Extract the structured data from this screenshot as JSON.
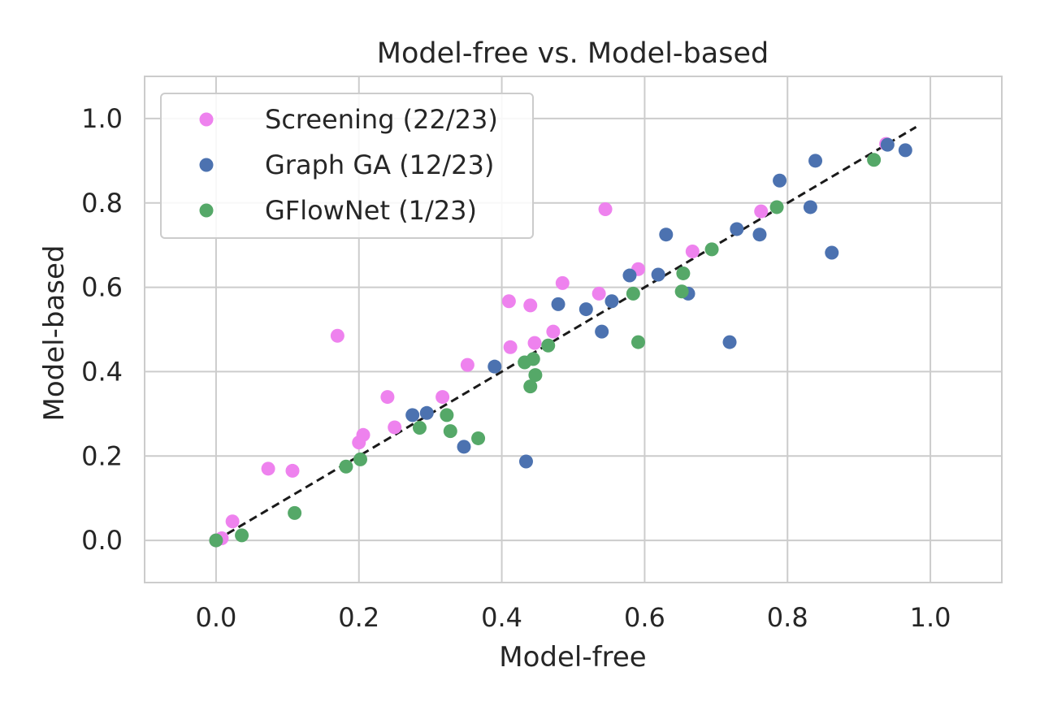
{
  "chart_data": {
    "type": "scatter",
    "title": "Model-free vs. Model-based",
    "xlabel": "Model-free",
    "ylabel": "Model-based",
    "xlim": [
      -0.1,
      1.1
    ],
    "ylim": [
      -0.1,
      1.1
    ],
    "xticks": [
      0.0,
      0.2,
      0.4,
      0.6,
      0.8,
      1.0
    ],
    "yticks": [
      0.0,
      0.2,
      0.4,
      0.6,
      0.8,
      1.0
    ],
    "xtick_labels": [
      "0.0",
      "0.2",
      "0.4",
      "0.6",
      "0.8",
      "1.0"
    ],
    "ytick_labels": [
      "0.0",
      "0.2",
      "0.4",
      "0.6",
      "0.8",
      "1.0"
    ],
    "grid": true,
    "legend_position": "top-left",
    "reference_line": {
      "x": [
        0.0,
        0.98
      ],
      "y": [
        0.0,
        0.98
      ],
      "style": "dashed",
      "color": "#1a1a1a"
    },
    "series": [
      {
        "name": "Screening (22/23)",
        "color": "#ee82ee",
        "points": [
          [
            0.0,
            0.0
          ],
          [
            0.008,
            0.005
          ],
          [
            0.023,
            0.045
          ],
          [
            0.073,
            0.17
          ],
          [
            0.107,
            0.165
          ],
          [
            0.17,
            0.485
          ],
          [
            0.2,
            0.232
          ],
          [
            0.206,
            0.25
          ],
          [
            0.24,
            0.34
          ],
          [
            0.25,
            0.268
          ],
          [
            0.317,
            0.34
          ],
          [
            0.352,
            0.416
          ],
          [
            0.41,
            0.567
          ],
          [
            0.412,
            0.458
          ],
          [
            0.44,
            0.557
          ],
          [
            0.446,
            0.468
          ],
          [
            0.472,
            0.495
          ],
          [
            0.485,
            0.61
          ],
          [
            0.536,
            0.585
          ],
          [
            0.545,
            0.785
          ],
          [
            0.591,
            0.643
          ],
          [
            0.763,
            0.78
          ],
          [
            0.667,
            0.685
          ],
          [
            0.938,
            0.94
          ]
        ]
      },
      {
        "name": "Graph GA (12/23)",
        "color": "#4c72b0",
        "points": [
          [
            0.275,
            0.297
          ],
          [
            0.295,
            0.302
          ],
          [
            0.347,
            0.222
          ],
          [
            0.39,
            0.412
          ],
          [
            0.434,
            0.187
          ],
          [
            0.479,
            0.56
          ],
          [
            0.518,
            0.548
          ],
          [
            0.54,
            0.495
          ],
          [
            0.554,
            0.567
          ],
          [
            0.579,
            0.628
          ],
          [
            0.619,
            0.63
          ],
          [
            0.63,
            0.725
          ],
          [
            0.661,
            0.585
          ],
          [
            0.719,
            0.47
          ],
          [
            0.729,
            0.738
          ],
          [
            0.761,
            0.725
          ],
          [
            0.789,
            0.853
          ],
          [
            0.832,
            0.79
          ],
          [
            0.839,
            0.9
          ],
          [
            0.862,
            0.682
          ],
          [
            0.94,
            0.938
          ],
          [
            0.965,
            0.925
          ]
        ]
      },
      {
        "name": "GFlowNet (1/23)",
        "color": "#55a868",
        "points": [
          [
            0.0,
            0.0
          ],
          [
            0.036,
            0.012
          ],
          [
            0.11,
            0.065
          ],
          [
            0.182,
            0.175
          ],
          [
            0.202,
            0.192
          ],
          [
            0.285,
            0.267
          ],
          [
            0.323,
            0.297
          ],
          [
            0.328,
            0.259
          ],
          [
            0.367,
            0.242
          ],
          [
            0.432,
            0.422
          ],
          [
            0.44,
            0.365
          ],
          [
            0.444,
            0.43
          ],
          [
            0.447,
            0.392
          ],
          [
            0.465,
            0.462
          ],
          [
            0.584,
            0.585
          ],
          [
            0.591,
            0.47
          ],
          [
            0.652,
            0.59
          ],
          [
            0.654,
            0.633
          ],
          [
            0.694,
            0.69
          ],
          [
            0.785,
            0.79
          ],
          [
            0.921,
            0.902
          ]
        ]
      }
    ]
  }
}
